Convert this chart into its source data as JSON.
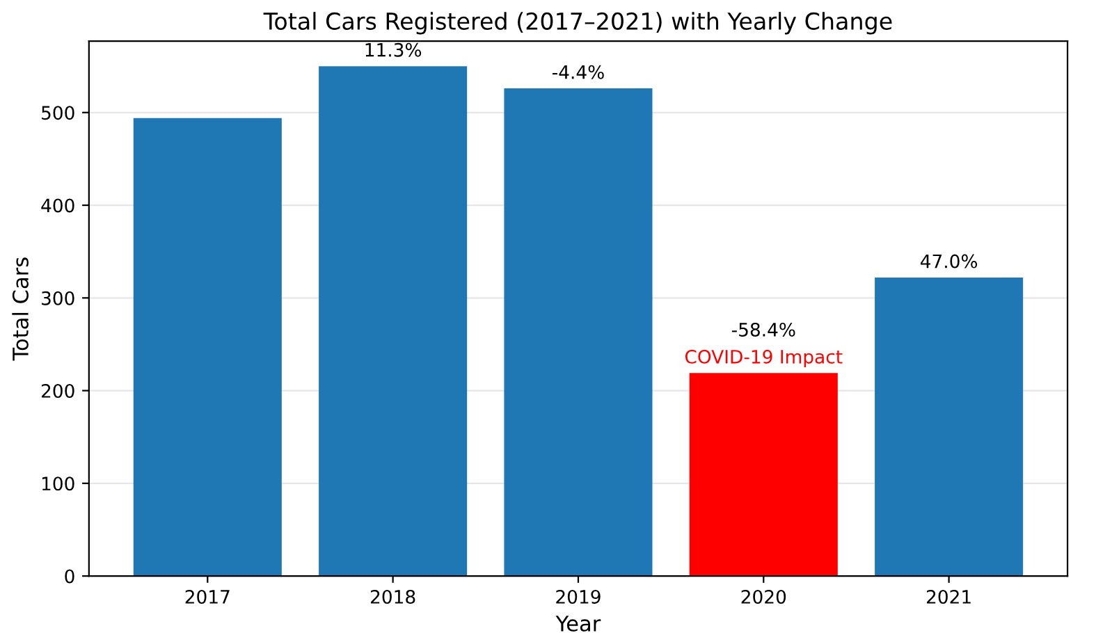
{
  "chart_data": {
    "type": "bar",
    "title": "Total Cars Registered (2017–2021) with Yearly Change",
    "xlabel": "Year",
    "ylabel": "Total Cars",
    "categories": [
      "2017",
      "2018",
      "2019",
      "2020",
      "2021"
    ],
    "values": [
      494,
      550,
      526,
      219,
      322
    ],
    "colors": [
      "#1f77b4",
      "#1f77b4",
      "#1f77b4",
      "#ff0000",
      "#1f77b4"
    ],
    "annotations": [
      {
        "text": "11.3%",
        "x": "2018",
        "y": 550
      },
      {
        "text": "-4.4%",
        "x": "2019",
        "y": 526
      },
      {
        "text": "-58.4%",
        "x": "2020",
        "y": 219
      },
      {
        "text": "47.0%",
        "x": "2021",
        "y": 322
      },
      {
        "text": "COVID-19 Impact",
        "x": "2020",
        "y": 219
      }
    ],
    "ylim": [
      0,
      577
    ],
    "yticks": [
      0,
      100,
      200,
      300,
      400,
      500
    ],
    "grid": "y"
  }
}
